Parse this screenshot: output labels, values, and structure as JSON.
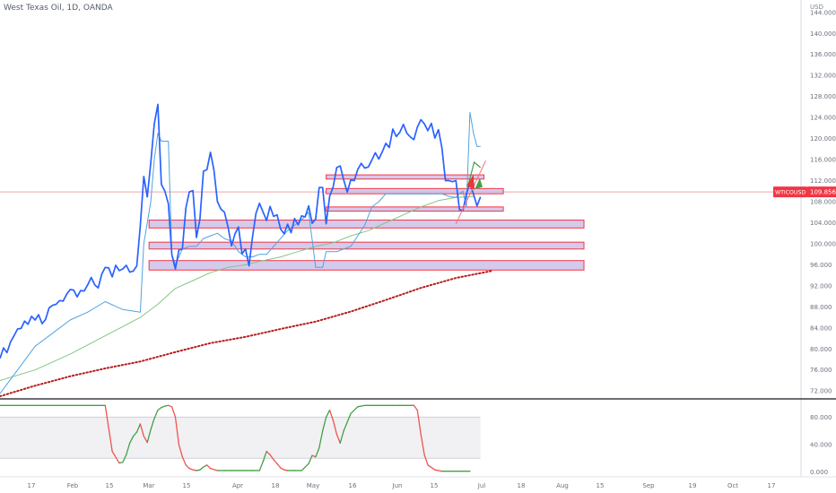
{
  "header": {
    "symbol_title": "West Texas Oil, 1D, OANDA",
    "currency": "USD"
  },
  "price_tag": {
    "ticker": "WTICOUSD",
    "value": "109.856",
    "color": "#f23645"
  },
  "colors": {
    "price_line": "#2962ff",
    "upper_band": "#4fa3e0",
    "slow_ma": "#81c784",
    "dotted_ma": "#b71c1c",
    "zone_fill": "#c5b8e6",
    "zone_border": "#f23645",
    "osc_up": "#43a047",
    "osc_down": "#ef5350"
  },
  "chart_data": [
    {
      "type": "line",
      "title": "",
      "x_tick_labels": [
        "17",
        "Feb",
        "15",
        "Mar",
        "15",
        "Apr",
        "18",
        "May",
        "16",
        "Jun",
        "15",
        "Jul",
        "18",
        "Aug",
        "15",
        "Sep",
        "19",
        "Oct",
        "17"
      ],
      "y_tick_labels": [
        "72.000",
        "76.000",
        "80.000",
        "84.000",
        "88.000",
        "92.000",
        "96.000",
        "100.000",
        "104.000",
        "108.000",
        "112.000",
        "116.000",
        "120.000",
        "124.000",
        "128.000",
        "132.000",
        "136.000",
        "140.000",
        "144.000"
      ],
      "ylim": [
        70.5,
        145.5
      ],
      "xlim": [
        0,
        200
      ],
      "grid": false,
      "series": [
        {
          "key": "price",
          "x": [
            0,
            1,
            2,
            3,
            4,
            5,
            6,
            7,
            8,
            9,
            10,
            11,
            12,
            13,
            14,
            15,
            16,
            17,
            18,
            19,
            20,
            21,
            22,
            23,
            24,
            25,
            26,
            27,
            28,
            29,
            30,
            31,
            32,
            33,
            34,
            35,
            36,
            37,
            38,
            39,
            40,
            41,
            42,
            43,
            44,
            45,
            46,
            47,
            48,
            49,
            50,
            51,
            52,
            53,
            54,
            55,
            56,
            57,
            58,
            59,
            60,
            61,
            62,
            63,
            64,
            65,
            66,
            67,
            68,
            69,
            70,
            71,
            72,
            73,
            74,
            75,
            76,
            77,
            78,
            79,
            80,
            81,
            82,
            83,
            84,
            85,
            86,
            87,
            88,
            89,
            90,
            91,
            92,
            93,
            94,
            95,
            96,
            97,
            98,
            99,
            100,
            101,
            102,
            103,
            104,
            105,
            106,
            107,
            108,
            109,
            110,
            111,
            112,
            113,
            114,
            115,
            116,
            117
          ],
          "values": [
            78.2,
            80.2,
            79.3,
            81.3,
            82.5,
            83.8,
            83.9,
            85.3,
            84.7,
            86.2,
            85.5,
            86.5,
            84.8,
            85.6,
            87.8,
            88.3,
            88.5,
            89.2,
            89.1,
            90.4,
            91.3,
            91.2,
            89.9,
            91.1,
            91.0,
            92.2,
            93.6,
            92.2,
            91.6,
            94.2,
            95.5,
            95.4,
            93.7,
            95.9,
            94.9,
            95.2,
            95.9,
            94.6,
            94.8,
            95.8,
            103.4,
            112.8,
            108.9,
            115.4,
            122.8,
            126.5,
            111.3,
            110.0,
            107.6,
            97.9,
            95.2,
            98.8,
            99.0,
            106.8,
            109.9,
            110.1,
            101.2,
            104.7,
            113.8,
            114.1,
            117.4,
            114.0,
            108.0,
            106.6,
            106.0,
            103.2,
            99.6,
            101.9,
            103.2,
            98.1,
            99.0,
            95.8,
            101.3,
            105.8,
            107.7,
            106.0,
            104.4,
            107.1,
            105.2,
            105.5,
            102.8,
            101.9,
            103.7,
            102.1,
            104.8,
            103.6,
            105.3,
            105.1,
            107.2,
            103.9,
            104.7,
            110.7,
            110.7,
            103.8,
            109.0,
            110.8,
            114.5,
            114.8,
            112.1,
            109.8,
            112.1,
            112.0,
            114.1,
            115.3,
            114.4,
            114.6,
            115.9,
            117.3,
            116.1,
            117.5,
            119.1,
            118.3,
            121.8,
            120.4,
            121.2,
            122.7,
            121.0,
            120.3
          ]
        },
        {
          "key": "price_tail",
          "x": [
            117,
            118,
            119,
            120,
            121,
            122,
            123,
            124,
            125,
            126,
            127,
            128,
            129,
            130,
            131,
            132,
            133,
            134,
            135,
            136,
            137
          ],
          "values": [
            120.3,
            119.8,
            122.2,
            123.6,
            122.8,
            121.5,
            122.9,
            120.1,
            121.7,
            118.2,
            112.0,
            112.0,
            111.8,
            112.0,
            106.5,
            106.3,
            109.5,
            111.6,
            109.4,
            107.2,
            108.9
          ]
        },
        {
          "key": "upper_band",
          "x": [
            0,
            5,
            10,
            15,
            20,
            25,
            30,
            35,
            40,
            41,
            42,
            43,
            44,
            45,
            46,
            47,
            48,
            49,
            50,
            52,
            54,
            56,
            58,
            60,
            62,
            64,
            66,
            68,
            70,
            72,
            74,
            76,
            78,
            80,
            82,
            84,
            86,
            88,
            90,
            92,
            93,
            94,
            96,
            98,
            100,
            102,
            104,
            106,
            108,
            110,
            112,
            114,
            116,
            118,
            120,
            122,
            124,
            126,
            128,
            130,
            131,
            132,
            133,
            134,
            135,
            136,
            137
          ],
          "values": [
            71.5,
            76.0,
            80.5,
            83.0,
            85.5,
            87.0,
            89.0,
            87.5,
            87.0,
            100.0,
            104.0,
            108.0,
            116.0,
            121.0,
            119.5,
            119.5,
            119.5,
            98.0,
            96.0,
            99.0,
            99.5,
            99.5,
            101.0,
            101.5,
            102.0,
            101.0,
            100.5,
            98.5,
            97.5,
            97.5,
            98.0,
            98.0,
            99.5,
            101.0,
            102.5,
            103.5,
            104.5,
            106.0,
            95.5,
            95.5,
            98.5,
            98.5,
            98.5,
            99.0,
            99.5,
            101.5,
            103.5,
            107.0,
            108.0,
            109.5,
            109.5,
            109.5,
            109.5,
            109.5,
            109.5,
            109.5,
            109.5,
            109.5,
            109.0,
            108.8,
            109.5,
            110.0,
            107.0,
            125.0,
            121.0,
            118.5,
            118.5
          ]
        },
        {
          "key": "slow_ma",
          "x": [
            0,
            10,
            20,
            30,
            40,
            45,
            50,
            55,
            60,
            65,
            70,
            75,
            80,
            85,
            90,
            95,
            100,
            105,
            110,
            115,
            120,
            125,
            130,
            135
          ],
          "values": [
            74.0,
            76.0,
            79.0,
            82.5,
            86.0,
            88.5,
            91.5,
            93.0,
            94.5,
            95.5,
            96.0,
            96.8,
            97.5,
            98.5,
            99.5,
            100.2,
            101.5,
            102.5,
            104.0,
            105.5,
            107.0,
            108.2,
            108.8,
            109.0
          ]
        },
        {
          "key": "dotted_ma",
          "x": [
            0,
            10,
            20,
            30,
            40,
            50,
            60,
            70,
            80,
            90,
            100,
            110,
            120,
            130,
            140
          ],
          "values": [
            71.0,
            73.0,
            74.8,
            76.3,
            77.6,
            79.4,
            81.1,
            82.3,
            83.8,
            85.2,
            87.1,
            89.3,
            91.6,
            93.5,
            94.8
          ]
        }
      ],
      "zones": [
        {
          "x0": 93,
          "x1": 138,
          "y_low": 112.3,
          "y_high": 113.1
        },
        {
          "x0": 93,
          "x1": 143.5,
          "y_low": 109.5,
          "y_high": 110.5
        },
        {
          "x0": 93,
          "x1": 143.5,
          "y_low": 106.2,
          "y_high": 107.0
        },
        {
          "x0": 42.5,
          "x1": 166.5,
          "y_low": 103.0,
          "y_high": 104.5
        },
        {
          "x0": 42.5,
          "x1": 166.5,
          "y_low": 99.0,
          "y_high": 100.3
        },
        {
          "x0": 42.5,
          "x1": 166.5,
          "y_low": 95.0,
          "y_high": 96.8
        }
      ],
      "horizontal_line": 109.856
    },
    {
      "type": "line",
      "title": "",
      "y_tick_labels": [
        "0.000",
        "40.000",
        "80.000"
      ],
      "ylim": [
        -2,
        100
      ],
      "xlim": [
        0,
        200
      ],
      "band": [
        20,
        80
      ],
      "series": [
        {
          "key": "oscillator",
          "x": [
            0,
            30,
            32,
            34,
            35,
            36,
            37,
            38,
            39,
            40,
            41,
            42,
            43,
            44,
            45,
            46,
            47,
            48,
            49,
            50,
            51,
            52,
            53,
            54,
            55,
            56,
            57,
            58,
            59,
            60,
            62,
            64,
            66,
            68,
            70,
            72,
            74,
            75,
            76,
            77,
            78,
            79,
            80,
            81,
            82,
            84,
            86,
            88,
            89,
            90,
            91,
            92,
            93,
            94,
            95,
            96,
            97,
            98,
            100,
            102,
            104,
            106,
            108,
            110,
            112,
            114,
            116,
            118,
            119,
            120,
            121,
            122,
            124,
            126,
            128,
            130,
            132,
            134
          ],
          "values": [
            97,
            97,
            30,
            13,
            14,
            25,
            42,
            52,
            58,
            70,
            52,
            43,
            62,
            78,
            90,
            94,
            96,
            97,
            95,
            80,
            40,
            22,
            10,
            5,
            3,
            2,
            3,
            7,
            10,
            5,
            2,
            2,
            2,
            2,
            2,
            2,
            2,
            15,
            30,
            25,
            18,
            12,
            6,
            3,
            2,
            2,
            2,
            12,
            24,
            22,
            35,
            60,
            80,
            90,
            75,
            55,
            42,
            60,
            85,
            95,
            97,
            97,
            97,
            97,
            97,
            97,
            97,
            97,
            90,
            55,
            25,
            10,
            3,
            1,
            1,
            1,
            1,
            1
          ]
        }
      ]
    }
  ]
}
